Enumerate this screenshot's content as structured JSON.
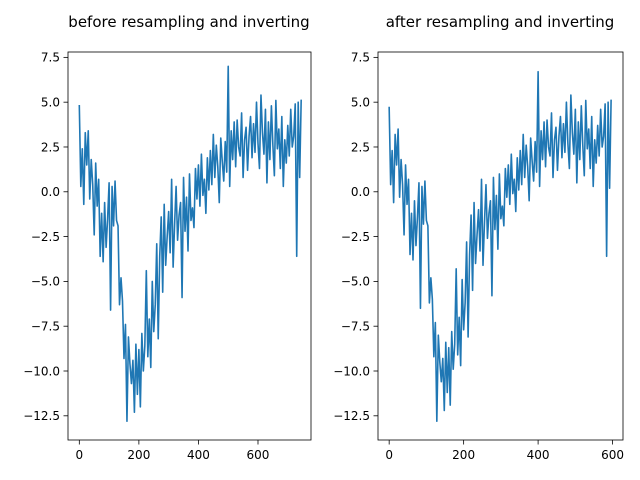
{
  "chart_data": [
    {
      "type": "line",
      "title": "before resampling and inverting",
      "xlabel": "",
      "ylabel": "",
      "xlim": [
        -38,
        778
      ],
      "ylim": [
        -13.85,
        7.8
      ],
      "xticks": [
        0,
        200,
        400,
        600
      ],
      "xtick_labels": [
        "0",
        "200",
        "400",
        "600"
      ],
      "yticks": [
        7.5,
        5.0,
        2.5,
        0.0,
        -2.5,
        -5.0,
        -7.5,
        -10.0,
        -12.5
      ],
      "ytick_labels": [
        "7.5",
        "5.0",
        "2.5",
        "0.0",
        "−2.5",
        "−5.0",
        "−7.5",
        "−10.0",
        "−12.5"
      ],
      "grid": false,
      "series": [
        {
          "color": "#1f77b4",
          "x": [
            0,
            5,
            10,
            15,
            20,
            25,
            30,
            35,
            40,
            45,
            50,
            55,
            60,
            65,
            70,
            75,
            80,
            85,
            90,
            95,
            100,
            105,
            110,
            115,
            120,
            125,
            130,
            135,
            140,
            145,
            150,
            155,
            160,
            165,
            170,
            175,
            180,
            185,
            190,
            195,
            200,
            205,
            210,
            215,
            220,
            225,
            230,
            235,
            240,
            245,
            250,
            255,
            260,
            265,
            270,
            275,
            280,
            285,
            290,
            295,
            300,
            305,
            310,
            315,
            320,
            325,
            330,
            335,
            340,
            345,
            350,
            355,
            360,
            365,
            370,
            375,
            380,
            385,
            390,
            395,
            400,
            405,
            410,
            415,
            420,
            425,
            430,
            435,
            440,
            445,
            450,
            455,
            460,
            465,
            470,
            475,
            480,
            485,
            490,
            495,
            500,
            505,
            510,
            515,
            520,
            525,
            530,
            535,
            540,
            545,
            550,
            555,
            560,
            565,
            570,
            575,
            580,
            585,
            590,
            595,
            600,
            605,
            610,
            615,
            620,
            625,
            630,
            635,
            640,
            645,
            650,
            655,
            660,
            665,
            670,
            675,
            680,
            685,
            690,
            695,
            700,
            705,
            710,
            715,
            720,
            725,
            730,
            735,
            740,
            745
          ],
          "y": [
            4.8,
            0.3,
            2.4,
            -0.7,
            3.3,
            1.5,
            3.4,
            -0.4,
            1.8,
            0.4,
            -2.4,
            1.6,
            -0.8,
            0.7,
            -3.6,
            -1.2,
            -3.9,
            -0.6,
            -3.1,
            -1.5,
            0.5,
            -6.6,
            0.3,
            -1.9,
            0.6,
            -1.6,
            -1.9,
            -6.3,
            -4.8,
            -6.1,
            -9.3,
            -7.4,
            -12.8,
            -8.1,
            -9.6,
            -10.7,
            -9.4,
            -12.3,
            -8.5,
            -11.3,
            -8.8,
            -12.0,
            -7.9,
            -10.0,
            -8.6,
            -4.4,
            -9.2,
            -7.1,
            -9.8,
            -5.0,
            -7.8,
            -6.3,
            -2.9,
            -8.2,
            -3.6,
            -1.4,
            -5.6,
            -0.7,
            -4.1,
            -2.5,
            -1.1,
            -3.4,
            0.7,
            -4.2,
            -1.8,
            0.3,
            -2.7,
            -1.3,
            -0.6,
            -5.9,
            0.8,
            -2.2,
            -0.3,
            -3.3,
            1.0,
            -1.6,
            -0.9,
            -2.0,
            1.3,
            -0.4,
            1.5,
            -0.8,
            2.1,
            -0.2,
            0.7,
            -1.2,
            1.9,
            0.1,
            2.3,
            0.4,
            3.2,
            0.8,
            2.6,
            1.4,
            -0.6,
            3.0,
            1.7,
            0.6,
            2.8,
            1.1,
            7.0,
            0.3,
            3.4,
            1.8,
            3.9,
            1.4,
            4.0,
            2.5,
            2.0,
            4.4,
            0.8,
            2.9,
            3.6,
            1.2,
            3.1,
            4.2,
            1.9,
            3.8,
            2.2,
            5.0,
            2.7,
            1.3,
            5.4,
            3.3,
            2.1,
            4.6,
            0.5,
            3.9,
            1.8,
            4.8,
            2.6,
            0.9,
            5.1,
            2.4,
            3.5,
            1.3,
            4.2,
            0.3,
            2.9,
            1.6,
            3.7,
            2.0,
            4.6,
            2.5,
            3.1,
            4.9,
            -3.6,
            5.0,
            0.8,
            5.1
          ]
        }
      ]
    },
    {
      "type": "line",
      "title": "after resampling and inverting",
      "xlabel": "",
      "ylabel": "",
      "xlim": [
        -30,
        628
      ],
      "ylim": [
        -13.85,
        7.8
      ],
      "xticks": [
        0,
        200,
        400,
        600
      ],
      "xtick_labels": [
        "0",
        "200",
        "400",
        "600"
      ],
      "yticks": [
        7.5,
        5.0,
        2.5,
        0.0,
        -2.5,
        -5.0,
        -7.5,
        -10.0,
        -12.5
      ],
      "ytick_labels": [
        "7.5",
        "5.0",
        "2.5",
        "0.0",
        "−2.5",
        "−5.0",
        "−7.5",
        "−10.0",
        "−12.5"
      ],
      "grid": false,
      "series": [
        {
          "color": "#1f77b4",
          "x": [
            0,
            4,
            8,
            12,
            16,
            20,
            24,
            28,
            32,
            36,
            40,
            44,
            48,
            52,
            56,
            60,
            64,
            68,
            72,
            76,
            80,
            84,
            88,
            92,
            96,
            100,
            104,
            108,
            112,
            116,
            120,
            124,
            128,
            132,
            136,
            140,
            144,
            148,
            152,
            156,
            160,
            164,
            168,
            172,
            176,
            180,
            184,
            188,
            192,
            196,
            200,
            204,
            208,
            212,
            216,
            220,
            224,
            228,
            232,
            236,
            240,
            244,
            248,
            252,
            256,
            260,
            264,
            268,
            272,
            276,
            280,
            284,
            288,
            292,
            296,
            300,
            304,
            308,
            312,
            316,
            320,
            324,
            328,
            332,
            336,
            340,
            344,
            348,
            352,
            356,
            360,
            364,
            368,
            372,
            376,
            380,
            384,
            388,
            392,
            396,
            400,
            404,
            408,
            412,
            416,
            420,
            424,
            428,
            432,
            436,
            440,
            444,
            448,
            452,
            456,
            460,
            464,
            468,
            472,
            476,
            480,
            484,
            488,
            492,
            496,
            500,
            504,
            508,
            512,
            516,
            520,
            524,
            528,
            532,
            536,
            540,
            544,
            548,
            552,
            556,
            560,
            564,
            568,
            572,
            576,
            580,
            584,
            588,
            592,
            596
          ],
          "y": [
            4.7,
            0.4,
            2.3,
            -0.6,
            3.2,
            1.5,
            3.5,
            -0.3,
            1.8,
            0.4,
            -2.4,
            1.5,
            -0.7,
            0.7,
            -3.5,
            -1.2,
            -3.8,
            -0.5,
            -3.0,
            -1.4,
            0.5,
            -6.5,
            0.3,
            -1.8,
            0.6,
            -1.6,
            -1.9,
            -6.2,
            -4.8,
            -6.0,
            -9.2,
            -7.3,
            -12.8,
            -8.0,
            -9.5,
            -10.6,
            -9.3,
            -12.2,
            -8.4,
            -11.2,
            -8.7,
            -11.9,
            -7.8,
            -9.9,
            -8.5,
            -4.3,
            -9.1,
            -7.0,
            -9.7,
            -4.9,
            -7.7,
            -6.2,
            -2.8,
            -8.1,
            -3.5,
            -1.3,
            -5.5,
            -0.6,
            -4.0,
            -2.4,
            -1.0,
            -3.3,
            0.7,
            -4.1,
            -1.7,
            0.4,
            -2.6,
            -1.2,
            -0.5,
            -5.8,
            0.8,
            -2.1,
            -0.2,
            -3.2,
            1.0,
            -1.5,
            -0.8,
            -1.9,
            1.3,
            -0.3,
            1.5,
            -0.7,
            2.1,
            -0.1,
            0.7,
            -1.1,
            1.9,
            0.1,
            2.3,
            0.4,
            3.2,
            0.8,
            2.6,
            1.4,
            -0.5,
            3.0,
            1.7,
            0.6,
            2.8,
            1.1,
            6.7,
            0.3,
            3.4,
            1.8,
            3.9,
            1.4,
            4.0,
            2.5,
            2.0,
            4.4,
            0.8,
            2.9,
            3.6,
            1.2,
            3.1,
            4.2,
            1.9,
            3.8,
            2.2,
            5.0,
            2.7,
            1.3,
            5.4,
            3.3,
            2.1,
            4.6,
            0.5,
            3.9,
            1.8,
            4.8,
            2.6,
            0.9,
            5.1,
            2.4,
            3.5,
            1.3,
            4.2,
            0.3,
            2.9,
            1.6,
            3.7,
            2.0,
            4.6,
            2.5,
            3.1,
            4.9,
            -3.6,
            5.0,
            0.2,
            5.1
          ]
        }
      ]
    }
  ]
}
